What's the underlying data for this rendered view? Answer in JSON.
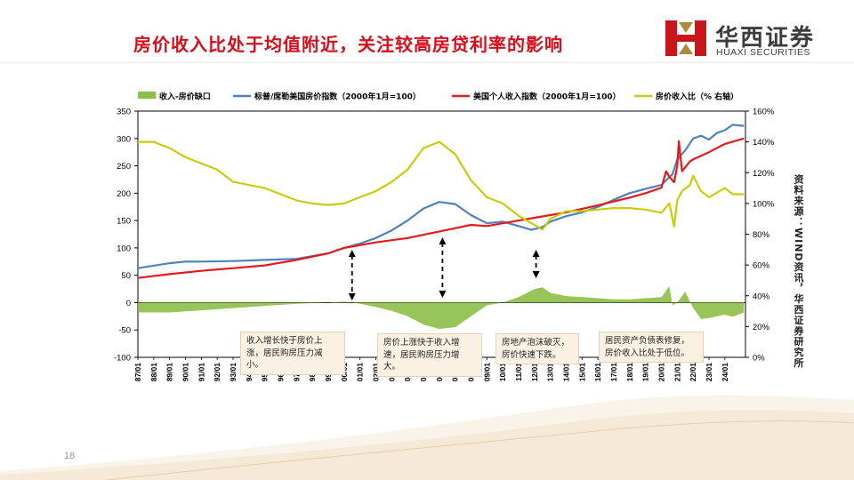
{
  "page": {
    "title": "房价收入比处于均值附近，关注较高房贷利率的影响",
    "logo_cn": "华西证券",
    "logo_en": "HUAXI SECURITIES",
    "source_text": "资料来源：WIND资讯，华西证券研究所",
    "page_number": "18",
    "colors": {
      "title": "#d80d1a",
      "logo_red": "#c8161d",
      "logo_gold": "#b08a3c"
    }
  },
  "chart_data": {
    "type": "line",
    "title": "",
    "xlabel": "",
    "ylabel": "",
    "ylim_left": [
      -100,
      350
    ],
    "yticks_left": [
      "350",
      "300",
      "250",
      "200",
      "150",
      "100",
      "50",
      "0",
      "-50",
      "-100"
    ],
    "ylim_right": [
      0,
      160
    ],
    "yticks_right": [
      "160%",
      "140%",
      "120%",
      "100%",
      "80%",
      "60%",
      "40%",
      "20%",
      "0%"
    ],
    "x_start_year": 1987,
    "x_end_year": 2025.3,
    "x_tick_labels": [
      "87/01",
      "88/01",
      "89/01",
      "90/01",
      "91/01",
      "92/01",
      "93/01",
      "94/01",
      "95/01",
      "96/01",
      "97/01",
      "98/01",
      "99/01",
      "00/01",
      "01/01",
      "02/01",
      "03/01",
      "04/01",
      "05/01",
      "06/01",
      "07/01",
      "08/01",
      "09/01",
      "10/01",
      "11/01",
      "12/01",
      "13/01",
      "14/01",
      "15/01",
      "16/01",
      "17/01",
      "18/01",
      "19/01",
      "20/01",
      "21/01",
      "22/01",
      "23/01",
      "24/01"
    ],
    "legend_position": "top",
    "series": [
      {
        "name": "收入-房价缺口",
        "axis": "left",
        "kind": "area",
        "color": "#8cbf47",
        "points": [
          [
            1987,
            -18
          ],
          [
            1989,
            -18
          ],
          [
            1991,
            -14
          ],
          [
            1993,
            -10
          ],
          [
            1995,
            -6
          ],
          [
            1997,
            -2
          ],
          [
            1999,
            0
          ],
          [
            2000,
            2
          ],
          [
            2001,
            -2
          ],
          [
            2002,
            -8
          ],
          [
            2003,
            -15
          ],
          [
            2004,
            -25
          ],
          [
            2005,
            -40
          ],
          [
            2006,
            -48
          ],
          [
            2007,
            -45
          ],
          [
            2008,
            -25
          ],
          [
            2009,
            -5
          ],
          [
            2010,
            0
          ],
          [
            2011,
            10
          ],
          [
            2012,
            25
          ],
          [
            2012.5,
            28
          ],
          [
            2013,
            18
          ],
          [
            2014,
            12
          ],
          [
            2015,
            10
          ],
          [
            2016,
            8
          ],
          [
            2017,
            6
          ],
          [
            2018,
            6
          ],
          [
            2019,
            8
          ],
          [
            2020,
            10
          ],
          [
            2020.5,
            30
          ],
          [
            2020.7,
            -5
          ],
          [
            2021,
            0
          ],
          [
            2021.5,
            20
          ],
          [
            2022,
            -10
          ],
          [
            2022.5,
            -30
          ],
          [
            2023,
            -28
          ],
          [
            2024,
            -22
          ],
          [
            2024.5,
            -26
          ],
          [
            2025.2,
            -18
          ]
        ]
      },
      {
        "name": "标普/席勒美国房价指数（2000年1月=100）",
        "axis": "left",
        "kind": "line",
        "color": "#4f81bd",
        "points": [
          [
            1987,
            63
          ],
          [
            1989,
            72
          ],
          [
            1990,
            75
          ],
          [
            1991,
            75
          ],
          [
            1993,
            76
          ],
          [
            1995,
            78
          ],
          [
            1997,
            80
          ],
          [
            1999,
            90
          ],
          [
            2000,
            100
          ],
          [
            2001,
            108
          ],
          [
            2002,
            118
          ],
          [
            2003,
            132
          ],
          [
            2004,
            150
          ],
          [
            2005,
            172
          ],
          [
            2006,
            184
          ],
          [
            2007,
            180
          ],
          [
            2008,
            160
          ],
          [
            2009,
            145
          ],
          [
            2010,
            148
          ],
          [
            2011,
            140
          ],
          [
            2011.8,
            133
          ],
          [
            2012.5,
            138
          ],
          [
            2013,
            148
          ],
          [
            2014,
            158
          ],
          [
            2015,
            165
          ],
          [
            2016,
            175
          ],
          [
            2017,
            188
          ],
          [
            2018,
            200
          ],
          [
            2019,
            208
          ],
          [
            2020,
            215
          ],
          [
            2020.7,
            235
          ],
          [
            2021,
            262
          ],
          [
            2021.5,
            278
          ],
          [
            2022,
            300
          ],
          [
            2022.5,
            305
          ],
          [
            2023,
            298
          ],
          [
            2023.5,
            310
          ],
          [
            2024,
            315
          ],
          [
            2024.5,
            325
          ],
          [
            2025.2,
            323
          ]
        ]
      },
      {
        "name": "美国个人收入指数（2000年1月=100）",
        "axis": "left",
        "kind": "line",
        "color": "#e31a1c",
        "points": [
          [
            1987,
            45
          ],
          [
            1989,
            52
          ],
          [
            1991,
            58
          ],
          [
            1993,
            63
          ],
          [
            1995,
            68
          ],
          [
            1997,
            78
          ],
          [
            1999,
            90
          ],
          [
            2000,
            100
          ],
          [
            2002,
            110
          ],
          [
            2004,
            118
          ],
          [
            2006,
            130
          ],
          [
            2008,
            142
          ],
          [
            2009,
            140
          ],
          [
            2010,
            145
          ],
          [
            2012,
            155
          ],
          [
            2014,
            165
          ],
          [
            2016,
            178
          ],
          [
            2018,
            192
          ],
          [
            2019,
            200
          ],
          [
            2020,
            210
          ],
          [
            2020.3,
            240
          ],
          [
            2020.5,
            230
          ],
          [
            2020.8,
            220
          ],
          [
            2021,
            250
          ],
          [
            2021.1,
            295
          ],
          [
            2021.3,
            240
          ],
          [
            2021.8,
            258
          ],
          [
            2022,
            262
          ],
          [
            2023,
            275
          ],
          [
            2024,
            290
          ],
          [
            2025.2,
            300
          ]
        ]
      },
      {
        "name": "房价收入比（% 右轴）",
        "axis": "right",
        "kind": "line",
        "color": "#c8cc0e",
        "points": [
          [
            1987,
            140
          ],
          [
            1988,
            140
          ],
          [
            1989,
            136
          ],
          [
            1990,
            130
          ],
          [
            1991,
            126
          ],
          [
            1992,
            122
          ],
          [
            1993,
            114
          ],
          [
            1994,
            112
          ],
          [
            1995,
            110
          ],
          [
            1996,
            106
          ],
          [
            1997,
            102
          ],
          [
            1998,
            100
          ],
          [
            1999,
            99
          ],
          [
            2000,
            100
          ],
          [
            2001,
            104
          ],
          [
            2002,
            108
          ],
          [
            2003,
            114
          ],
          [
            2004,
            122
          ],
          [
            2005,
            136
          ],
          [
            2006,
            140
          ],
          [
            2007,
            132
          ],
          [
            2008,
            115
          ],
          [
            2009,
            104
          ],
          [
            2010,
            100
          ],
          [
            2011,
            92
          ],
          [
            2012,
            86
          ],
          [
            2012.5,
            83
          ],
          [
            2013,
            90
          ],
          [
            2014,
            95
          ],
          [
            2015,
            95
          ],
          [
            2016,
            96
          ],
          [
            2017,
            97
          ],
          [
            2018,
            97
          ],
          [
            2019,
            96
          ],
          [
            2020,
            94
          ],
          [
            2020.5,
            100
          ],
          [
            2020.8,
            85
          ],
          [
            2021,
            102
          ],
          [
            2021.3,
            108
          ],
          [
            2021.8,
            112
          ],
          [
            2022,
            118
          ],
          [
            2022.5,
            108
          ],
          [
            2023,
            104
          ],
          [
            2024,
            110
          ],
          [
            2024.5,
            106
          ],
          [
            2025.2,
            106
          ]
        ]
      }
    ],
    "annotations": [
      {
        "text": "收入增长快于房价上涨，居民购房压力减小。",
        "year": 2000.5
      },
      {
        "text": "房价上涨快于收入增速，居民购房压力增大。",
        "year": 2006.2
      },
      {
        "text": "房地产泡沫破灭，房价快速下跌。",
        "year": 2012.1
      },
      {
        "text": "居民资产负债表修复，房价收入比处于低位。",
        "year": 2020
      }
    ]
  }
}
